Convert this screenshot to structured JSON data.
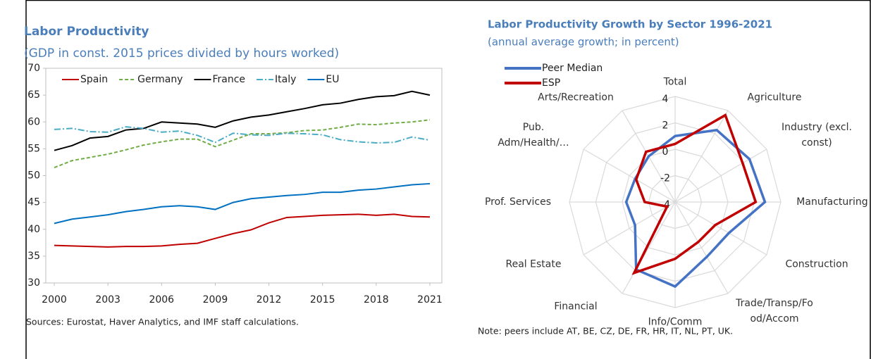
{
  "chart_data": [
    {
      "type": "line",
      "title": "Labor Productivity",
      "subtitle": "(GDP in const. 2015 prices divided by hours worked)",
      "x": [
        2000,
        2001,
        2002,
        2003,
        2004,
        2005,
        2006,
        2007,
        2008,
        2009,
        2010,
        2011,
        2012,
        2013,
        2014,
        2015,
        2016,
        2017,
        2018,
        2019,
        2020,
        2021
      ],
      "series": [
        {
          "name": "Spain",
          "color": "#c00000",
          "dash": "solid",
          "values": [
            37.0,
            36.9,
            36.8,
            36.7,
            36.8,
            36.8,
            36.9,
            37.2,
            37.4,
            38.3,
            39.2,
            39.9,
            41.2,
            42.2,
            42.4,
            42.6,
            42.7,
            42.8,
            42.6,
            42.8,
            42.4,
            42.3
          ]
        },
        {
          "name": "Germany",
          "color": "#70ad47",
          "dash": "dashed",
          "values": [
            51.5,
            52.8,
            53.4,
            54.0,
            54.8,
            55.7,
            56.3,
            56.8,
            56.8,
            55.4,
            56.6,
            57.8,
            57.8,
            58.0,
            58.4,
            58.5,
            59.0,
            59.6,
            59.5,
            59.8,
            60.0,
            60.4
          ]
        },
        {
          "name": "France",
          "color": "#000000",
          "dash": "solid",
          "values": [
            54.7,
            55.6,
            57.0,
            57.3,
            58.5,
            58.8,
            60.0,
            59.8,
            59.6,
            59.0,
            60.2,
            60.9,
            61.3,
            61.9,
            62.5,
            63.2,
            63.5,
            64.2,
            64.7,
            64.9,
            65.7,
            65.0
          ]
        },
        {
          "name": "Italy",
          "color": "#4bacc6",
          "dash": "dashdot",
          "values": [
            58.6,
            58.8,
            58.2,
            58.1,
            59.1,
            58.8,
            58.1,
            58.3,
            57.5,
            56.2,
            57.9,
            57.6,
            57.5,
            57.9,
            57.8,
            57.6,
            56.7,
            56.3,
            56.1,
            56.2,
            57.2,
            56.6
          ]
        },
        {
          "name": "EU",
          "color": "#0070c0",
          "dash": "solid",
          "values": [
            41.1,
            41.9,
            42.3,
            42.7,
            43.3,
            43.7,
            44.2,
            44.4,
            44.2,
            43.7,
            45.0,
            45.7,
            46.0,
            46.3,
            46.5,
            46.9,
            46.9,
            47.3,
            47.5,
            47.9,
            48.3,
            48.5
          ]
        }
      ],
      "xlim": [
        2000,
        2021
      ],
      "xticks": [
        2000,
        2003,
        2006,
        2009,
        2012,
        2015,
        2018,
        2021
      ],
      "ylim": [
        30,
        70
      ],
      "yticks": [
        30,
        35,
        40,
        45,
        50,
        55,
        60,
        65,
        70
      ],
      "legend": "top",
      "note": "Sources: Eurostat, Haver Analytics, and IMF staff calculations."
    },
    {
      "type": "radar",
      "title": "Labor Productivity Growth by Sector 1996-2021",
      "subtitle": "(annual average growth; in percent)",
      "categories": [
        "Total",
        "Agriculture",
        "Industry (excl. const)",
        "Manufacturing",
        "Construction",
        "Trade/Transp/Food/Accom",
        "Info/Comm",
        "Financial",
        "Real Estate",
        "Prof. Services",
        "Pub. Adm/Health/…",
        "Arts/Recreation"
      ],
      "series": [
        {
          "name": "Peer Median",
          "color": "#4472c4",
          "values": [
            1.0,
            2.3,
            2.5,
            2.8,
            0.7,
            0.8,
            2.4,
            1.9,
            -0.5,
            -0.3,
            -0.5,
            0.0
          ]
        },
        {
          "name": "ESP",
          "color": "#c00000",
          "values": [
            0.4,
            3.6,
            1.9,
            2.1,
            -0.5,
            -0.5,
            0.3,
            2.2,
            -3.3,
            -1.7,
            -0.6,
            0.4
          ]
        }
      ],
      "rlim": [
        -4,
        4
      ],
      "rticks": [
        -4,
        -2,
        0,
        2,
        4
      ],
      "legend": "top-left",
      "note": "Note: peers include AT, BE, CZ, DE, FR, HR, IT, NL, PT, UK."
    }
  ]
}
